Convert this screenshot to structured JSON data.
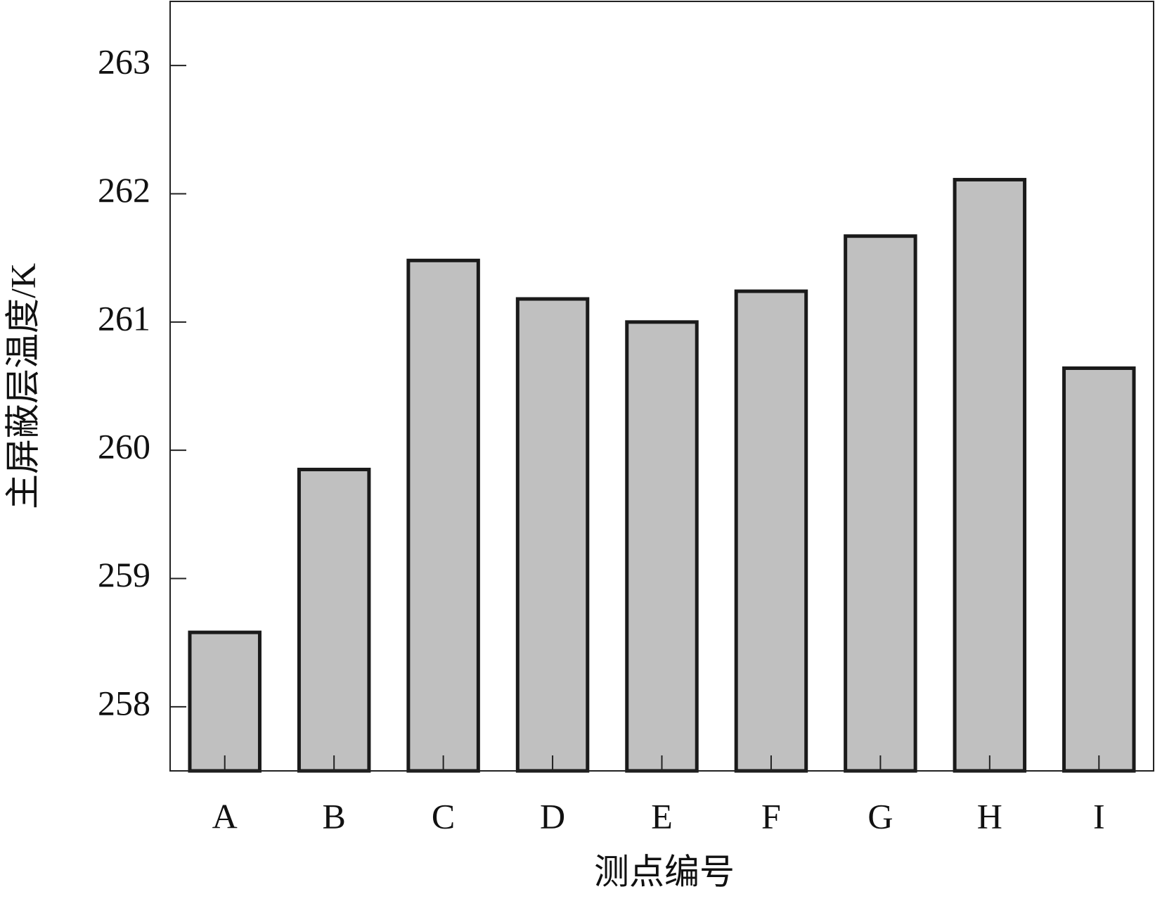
{
  "chart_data": {
    "type": "bar",
    "x_label": "测点编号",
    "y_label": "主屏蔽层温度/K",
    "categories": [
      "A",
      "B",
      "C",
      "D",
      "E",
      "F",
      "G",
      "H",
      "I"
    ],
    "values": [
      258.58,
      259.85,
      261.48,
      261.18,
      261.0,
      261.24,
      261.67,
      262.11,
      260.64
    ],
    "color": "#c0c0c0",
    "ylim": [
      257.5,
      263.5
    ],
    "yticks": [
      258,
      259,
      260,
      261,
      262,
      263
    ],
    "grid": false
  }
}
